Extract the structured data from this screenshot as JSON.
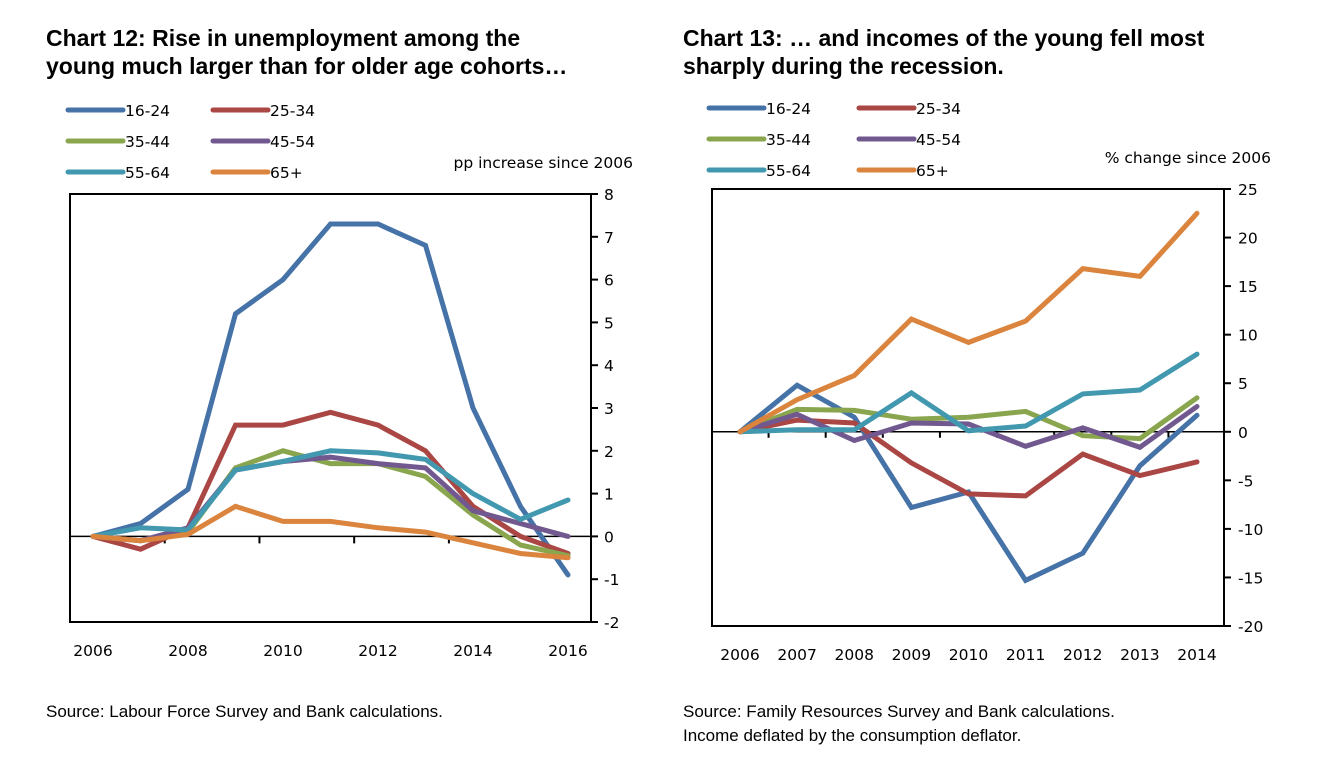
{
  "charts": [
    {
      "title": "Chart 12: Rise in unemployment among the\nyoung much larger than for older age cohorts…",
      "source": "Source: Labour Force Survey and Bank calculations.",
      "source_note": ""
    },
    {
      "title": "Chart 13: … and incomes of the young fell most\nsharply during the recession.",
      "source": "Source: Family Resources Survey and Bank calculations.",
      "source_note": "Income deflated by the consumption deflator."
    }
  ],
  "chart_data": [
    {
      "type": "line",
      "title": "Chart 12: Rise in unemployment among the young much larger than for older age cohorts…",
      "xlabel": "",
      "ylabel": "pp increase since 2006",
      "x": [
        2006,
        2007,
        2008,
        2009,
        2010,
        2011,
        2012,
        2013,
        2014,
        2015,
        2016
      ],
      "xticks": [
        2006,
        2008,
        2010,
        2012,
        2014,
        2016
      ],
      "ylim": [
        -2,
        8
      ],
      "yticks": [
        -2,
        -1,
        0,
        1,
        2,
        3,
        4,
        5,
        6,
        7,
        8
      ],
      "y_axis_side": "right",
      "grid": false,
      "legend_position": "top-left",
      "series": [
        {
          "name": "16-24",
          "color": "#4572A7",
          "values": [
            0,
            0.3,
            1.1,
            5.2,
            6.0,
            7.3,
            7.3,
            6.8,
            3.0,
            0.7,
            -0.9
          ]
        },
        {
          "name": "25-34",
          "color": "#AA4643",
          "values": [
            0,
            -0.3,
            0.2,
            2.6,
            2.6,
            2.9,
            2.6,
            2.0,
            0.7,
            0.0,
            -0.4
          ]
        },
        {
          "name": "35-44",
          "color": "#89A54E",
          "values": [
            0,
            -0.1,
            0.1,
            1.6,
            2.0,
            1.7,
            1.7,
            1.4,
            0.5,
            -0.2,
            -0.45
          ]
        },
        {
          "name": "45-54",
          "color": "#71588F",
          "values": [
            0,
            -0.1,
            0.2,
            1.55,
            1.75,
            1.85,
            1.7,
            1.6,
            0.6,
            0.3,
            0.0
          ]
        },
        {
          "name": "55-64",
          "color": "#4198AF",
          "values": [
            0,
            0.2,
            0.15,
            1.55,
            1.75,
            2.0,
            1.95,
            1.8,
            1.0,
            0.4,
            0.85
          ]
        },
        {
          "name": "65+",
          "color": "#DB843D",
          "values": [
            0,
            -0.1,
            0.05,
            0.7,
            0.35,
            0.35,
            0.2,
            0.1,
            -0.15,
            -0.4,
            -0.5
          ]
        }
      ]
    },
    {
      "type": "line",
      "title": "Chart 13: … and incomes of the young fell most sharply during the recession.",
      "xlabel": "",
      "ylabel": "% change since 2006",
      "x": [
        2006,
        2007,
        2008,
        2009,
        2010,
        2011,
        2012,
        2013,
        2014
      ],
      "xticks": [
        2006,
        2007,
        2008,
        2009,
        2010,
        2011,
        2012,
        2013,
        2014
      ],
      "ylim": [
        -20,
        25
      ],
      "yticks": [
        -20,
        -15,
        -10,
        -5,
        0,
        5,
        10,
        15,
        20,
        25
      ],
      "y_axis_side": "right",
      "grid": false,
      "legend_position": "top-left",
      "series": [
        {
          "name": "16-24",
          "color": "#4572A7",
          "values": [
            0,
            4.8,
            1.5,
            -7.8,
            -6.2,
            -15.3,
            -12.5,
            -3.5,
            1.7
          ]
        },
        {
          "name": "25-34",
          "color": "#AA4643",
          "values": [
            0,
            1.2,
            0.9,
            -3.2,
            -6.4,
            -6.6,
            -2.3,
            -4.5,
            -3.1
          ]
        },
        {
          "name": "35-44",
          "color": "#89A54E",
          "values": [
            0,
            2.3,
            2.2,
            1.3,
            1.5,
            2.1,
            -0.4,
            -0.7,
            3.5
          ]
        },
        {
          "name": "45-54",
          "color": "#71588F",
          "values": [
            0,
            1.8,
            -0.9,
            0.9,
            0.8,
            -1.5,
            0.4,
            -1.6,
            2.6
          ]
        },
        {
          "name": "55-64",
          "color": "#4198AF",
          "values": [
            0,
            0.2,
            0.2,
            4.0,
            0.1,
            0.6,
            3.9,
            4.3,
            8.0
          ]
        },
        {
          "name": "65+",
          "color": "#DB843D",
          "values": [
            0,
            3.3,
            5.8,
            11.6,
            9.2,
            11.4,
            16.8,
            16.0,
            22.5
          ]
        }
      ]
    }
  ]
}
